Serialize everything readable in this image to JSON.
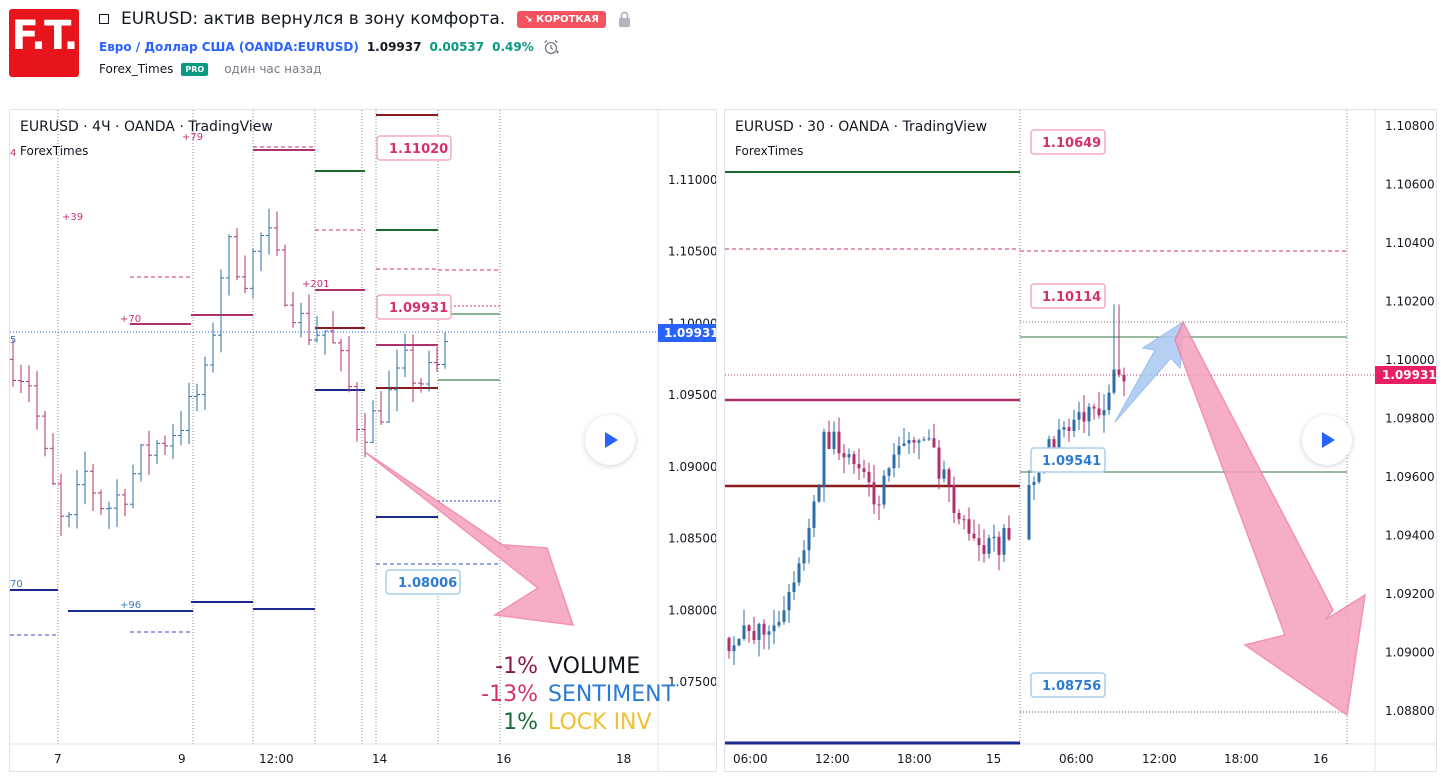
{
  "header": {
    "logo_text": "F.T.",
    "title": "EURUSD: актив вернулся в зону комфорта.",
    "badge": "↘ КОРОТКАЯ",
    "symbol_link": "Евро / Доллар США (OANDA:EURUSD)",
    "price": "1.09937",
    "change": "0.00537",
    "change_pct": "0.49%",
    "author": "Forex_Times",
    "pro_label": "PRO",
    "published": "один час назад"
  },
  "left_chart": {
    "title": "EURUSD · 4Ч · OANDA · TradingView",
    "watermark": "ForexTimes",
    "price_axis": [
      "1.11000",
      "1.10500",
      "1.10000",
      "1.09500",
      "1.09000",
      "1.08500",
      "1.08000",
      "1.07500"
    ],
    "time_axis": [
      "7",
      "9",
      "12:00",
      "14",
      "16",
      "18"
    ],
    "current_price": "1.09931",
    "callouts": [
      "1.11020",
      "1.09931",
      "1.08006"
    ],
    "small_labels": [
      "4",
      "+39",
      "+79",
      "+70",
      "+201",
      "+96",
      "70",
      "5"
    ],
    "stats": [
      {
        "value": "-1%",
        "label": "VOLUME",
        "value_color": "#8b1a4a",
        "label_color": "#131722"
      },
      {
        "value": "-13%",
        "label": "SENTIMENT",
        "value_color": "#d5306e",
        "label_color": "#2c7bd3"
      },
      {
        "value": "1%",
        "label": "LOCK INV",
        "value_color": "#1a6a3a",
        "label_color": "#f0c030"
      }
    ]
  },
  "right_chart": {
    "title": "EURUSD · 30 · OANDA · TradingView",
    "watermark": "ForexTimes",
    "price_axis": [
      "1.10800",
      "1.10600",
      "1.10400",
      "1.10200",
      "1.10000",
      "1.09800",
      "1.09600",
      "1.09400",
      "1.09200",
      "1.09000",
      "1.08800"
    ],
    "time_axis": [
      "06:00",
      "12:00",
      "18:00",
      "15",
      "06:00",
      "12:00",
      "18:00",
      "16"
    ],
    "current_price": "1.09931",
    "callouts": [
      "1.10649",
      "1.10114",
      "1.09541",
      "1.08756"
    ]
  },
  "colors": {
    "up": "#2c6fa8",
    "down": "#b0306e",
    "accent": "#2962ff",
    "arrow": "#f4a0bd",
    "arrow_up": "#a9c8f0"
  },
  "icons": [
    "alarm-clock-icon",
    "lock-icon",
    "play-icon"
  ]
}
